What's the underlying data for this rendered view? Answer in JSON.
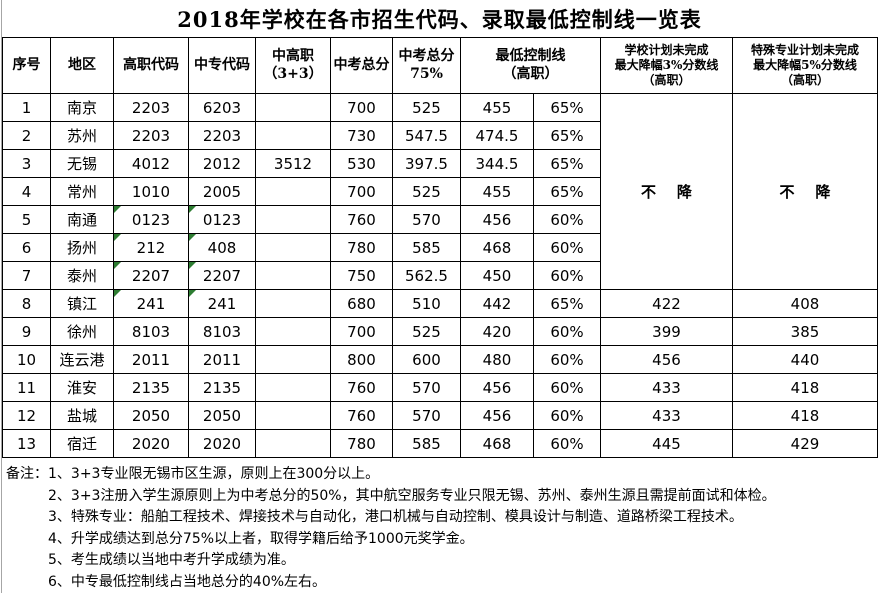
{
  "title": "2018年学校在各市招生代码、录取最低控制线一览表",
  "table": {
    "headers": {
      "index": "序号",
      "region": "地区",
      "gaozhi_code": "高职代码",
      "zhongzhuan_code": "中专代码",
      "zhonggaozhi": "中高职\n（3+3）",
      "zhongkao_total": "中考总分",
      "zhongkao_75": "中考总分\n75%",
      "min_control_line": "最低控制线\n（高职）",
      "school_plan": "学校计划未完成\n最大降幅3%分数线\n（高职）",
      "special_plan": "特殊专业计划未完成\n最大降幅5%分数线\n（高职）"
    },
    "no_drop": "不    降",
    "no_drop_rowspan": 7,
    "rows": [
      {
        "no": "1",
        "region": "南京",
        "gz": "2203",
        "zz": "6203",
        "zgz": "",
        "total": "700",
        "p75": "525",
        "min": "455",
        "pct": "65%",
        "school": "",
        "special": "",
        "green": []
      },
      {
        "no": "2",
        "region": "苏州",
        "gz": "2203",
        "zz": "2203",
        "zgz": "",
        "total": "730",
        "p75": "547.5",
        "min": "474.5",
        "pct": "65%",
        "school": "",
        "special": "",
        "green": []
      },
      {
        "no": "3",
        "region": "无锡",
        "gz": "4012",
        "zz": "2012",
        "zgz": "3512",
        "total": "530",
        "p75": "397.5",
        "min": "344.5",
        "pct": "65%",
        "school": "",
        "special": "",
        "green": []
      },
      {
        "no": "4",
        "region": "常州",
        "gz": "1010",
        "zz": "2005",
        "zgz": "",
        "total": "700",
        "p75": "525",
        "min": "455",
        "pct": "65%",
        "school": "",
        "special": "",
        "green": []
      },
      {
        "no": "5",
        "region": "南通",
        "gz": "0123",
        "zz": "0123",
        "zgz": "",
        "total": "760",
        "p75": "570",
        "min": "456",
        "pct": "60%",
        "school": "",
        "special": "",
        "green": [
          "gz",
          "zz"
        ]
      },
      {
        "no": "6",
        "region": "扬州",
        "gz": "212",
        "zz": "408",
        "zgz": "",
        "total": "780",
        "p75": "585",
        "min": "468",
        "pct": "60%",
        "school": "",
        "special": "",
        "green": [
          "gz",
          "zz"
        ]
      },
      {
        "no": "7",
        "region": "泰州",
        "gz": "2207",
        "zz": "2207",
        "zgz": "",
        "total": "750",
        "p75": "562.5",
        "min": "450",
        "pct": "60%",
        "school": "",
        "special": "",
        "green": [
          "gz",
          "zz"
        ]
      },
      {
        "no": "8",
        "region": "镇江",
        "gz": "241",
        "zz": "241",
        "zgz": "",
        "total": "680",
        "p75": "510",
        "min": "442",
        "pct": "65%",
        "school": "422",
        "special": "408",
        "green": [
          "gz",
          "zz"
        ]
      },
      {
        "no": "9",
        "region": "徐州",
        "gz": "8103",
        "zz": "8103",
        "zgz": "",
        "total": "700",
        "p75": "525",
        "min": "420",
        "pct": "60%",
        "school": "399",
        "special": "385",
        "green": []
      },
      {
        "no": "10",
        "region": "连云港",
        "gz": "2011",
        "zz": "2011",
        "zgz": "",
        "total": "800",
        "p75": "600",
        "min": "480",
        "pct": "60%",
        "school": "456",
        "special": "440",
        "green": []
      },
      {
        "no": "11",
        "region": "淮安",
        "gz": "2135",
        "zz": "2135",
        "zgz": "",
        "total": "760",
        "p75": "570",
        "min": "456",
        "pct": "60%",
        "school": "433",
        "special": "418",
        "green": []
      },
      {
        "no": "12",
        "region": "盐城",
        "gz": "2050",
        "zz": "2050",
        "zgz": "",
        "total": "760",
        "p75": "570",
        "min": "456",
        "pct": "60%",
        "school": "433",
        "special": "418",
        "green": []
      },
      {
        "no": "13",
        "region": "宿迁",
        "gz": "2020",
        "zz": "2020",
        "zgz": "",
        "total": "780",
        "p75": "585",
        "min": "468",
        "pct": "60%",
        "school": "445",
        "special": "429",
        "green": []
      }
    ]
  },
  "notes": {
    "lines": [
      "备注：1、3+3专业限无锡市区生源，原则上在300分以上。",
      "2、3+3注册入学生源原则上为中考总分的50%，其中航空服务专业只限无锡、苏州、泰州生源且需提前面试和体检。",
      "3、特殊专业：船舶工程技术、焊接技术与自动化，港口机械与自动控制、模具设计与制造、道路桥梁工程技术。",
      "4、升学成绩达到总分75%以上者，取得学籍后给予1000元奖学金。",
      "5、考生成绩以当地中考升学成绩为准。",
      "6、中专最低控制线占当地总分的40%左右。"
    ]
  },
  "colors": {
    "border": "#000000",
    "error_triangle_green": "#2e7d32",
    "background": "#ffffff"
  }
}
